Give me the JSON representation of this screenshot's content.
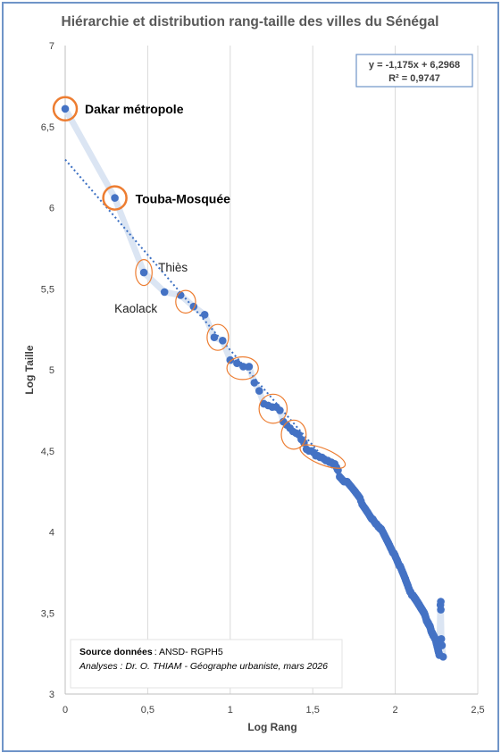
{
  "chart_data": {
    "type": "scatter",
    "title": "Hiérarchie et distribution rang-taille des villes du Sénégal",
    "xlabel": "Log Rang",
    "ylabel": "Log Taille",
    "xlim": [
      0,
      2.5
    ],
    "ylim": [
      3,
      7
    ],
    "x_ticks": [
      "0",
      "0,5",
      "1",
      "1,5",
      "2",
      "2,5"
    ],
    "y_ticks": [
      "3",
      "3,5",
      "4",
      "4,5",
      "5",
      "5,5",
      "6",
      "6,5",
      "7"
    ],
    "grid": "vertical",
    "equation": "y = -1,175x + 6,2968",
    "r2": "R² = 0,9747",
    "trendline": {
      "slope": -1.175,
      "intercept": 6.2968
    },
    "series": [
      {
        "points": [
          [
            0.0,
            6.61
          ],
          [
            0.301,
            6.06
          ],
          [
            0.477,
            5.6
          ],
          [
            0.602,
            5.48
          ],
          [
            0.699,
            5.46
          ],
          [
            0.778,
            5.39
          ],
          [
            0.845,
            5.34
          ],
          [
            0.903,
            5.2
          ],
          [
            0.954,
            5.18
          ],
          [
            1.0,
            5.06
          ],
          [
            1.041,
            5.04
          ],
          [
            1.079,
            5.02
          ],
          [
            1.114,
            5.02
          ],
          [
            1.146,
            4.92
          ],
          [
            1.176,
            4.87
          ],
          [
            1.204,
            4.79
          ],
          [
            1.23,
            4.78
          ],
          [
            1.255,
            4.77
          ],
          [
            1.279,
            4.77
          ],
          [
            1.301,
            4.75
          ],
          [
            1.322,
            4.68
          ],
          [
            1.342,
            4.66
          ],
          [
            1.362,
            4.64
          ],
          [
            1.38,
            4.62
          ],
          [
            1.398,
            4.61
          ],
          [
            1.415,
            4.6
          ],
          [
            1.431,
            4.57
          ],
          [
            1.447,
            4.55
          ],
          [
            1.462,
            4.51
          ],
          [
            1.477,
            4.5
          ],
          [
            1.491,
            4.5
          ],
          [
            1.505,
            4.49
          ],
          [
            1.519,
            4.47
          ],
          [
            1.531,
            4.47
          ],
          [
            1.544,
            4.46
          ],
          [
            1.556,
            4.46
          ],
          [
            1.568,
            4.45
          ],
          [
            1.58,
            4.44
          ],
          [
            1.591,
            4.44
          ],
          [
            1.602,
            4.43
          ],
          [
            1.613,
            4.43
          ],
          [
            1.623,
            4.42
          ],
          [
            1.633,
            4.42
          ],
          [
            1.643,
            4.4
          ],
          [
            1.653,
            4.38
          ],
          [
            1.663,
            4.34
          ],
          [
            1.672,
            4.33
          ],
          [
            1.681,
            4.32
          ],
          [
            1.69,
            4.31
          ],
          [
            1.699,
            4.31
          ],
          [
            1.708,
            4.31
          ],
          [
            1.716,
            4.3
          ],
          [
            1.724,
            4.29
          ],
          [
            1.732,
            4.28
          ],
          [
            1.74,
            4.27
          ],
          [
            1.748,
            4.26
          ],
          [
            1.756,
            4.25
          ],
          [
            1.763,
            4.24
          ],
          [
            1.771,
            4.23
          ],
          [
            1.778,
            4.22
          ],
          [
            1.785,
            4.21
          ],
          [
            1.792,
            4.19
          ],
          [
            1.799,
            4.17
          ],
          [
            1.806,
            4.16
          ],
          [
            1.813,
            4.15
          ],
          [
            1.82,
            4.14
          ],
          [
            1.826,
            4.13
          ],
          [
            1.833,
            4.12
          ],
          [
            1.839,
            4.11
          ],
          [
            1.845,
            4.1
          ],
          [
            1.851,
            4.09
          ],
          [
            1.857,
            4.08
          ],
          [
            1.863,
            4.08
          ],
          [
            1.869,
            4.07
          ],
          [
            1.875,
            4.06
          ],
          [
            1.881,
            4.05
          ],
          [
            1.886,
            4.05
          ],
          [
            1.892,
            4.04
          ],
          [
            1.898,
            4.03
          ],
          [
            1.903,
            4.03
          ],
          [
            1.908,
            4.02
          ],
          [
            1.914,
            4.02
          ],
          [
            1.919,
            4.01
          ],
          [
            1.924,
            4.0
          ],
          [
            1.929,
            3.99
          ],
          [
            1.934,
            3.98
          ],
          [
            1.939,
            3.97
          ],
          [
            1.944,
            3.96
          ],
          [
            1.949,
            3.95
          ],
          [
            1.954,
            3.94
          ],
          [
            1.959,
            3.93
          ],
          [
            1.964,
            3.92
          ],
          [
            1.968,
            3.91
          ],
          [
            1.973,
            3.9
          ],
          [
            1.978,
            3.89
          ],
          [
            1.982,
            3.88
          ],
          [
            1.987,
            3.87
          ],
          [
            1.991,
            3.87
          ],
          [
            1.996,
            3.86
          ],
          [
            2.0,
            3.85
          ],
          [
            2.004,
            3.84
          ],
          [
            2.009,
            3.83
          ],
          [
            2.013,
            3.82
          ],
          [
            2.017,
            3.81
          ],
          [
            2.021,
            3.8
          ],
          [
            2.025,
            3.79
          ],
          [
            2.029,
            3.79
          ],
          [
            2.033,
            3.78
          ],
          [
            2.037,
            3.77
          ],
          [
            2.041,
            3.76
          ],
          [
            2.045,
            3.75
          ],
          [
            2.049,
            3.74
          ],
          [
            2.053,
            3.73
          ],
          [
            2.057,
            3.72
          ],
          [
            2.061,
            3.71
          ],
          [
            2.064,
            3.7
          ],
          [
            2.068,
            3.69
          ],
          [
            2.072,
            3.68
          ],
          [
            2.076,
            3.67
          ],
          [
            2.079,
            3.66
          ],
          [
            2.083,
            3.65
          ],
          [
            2.086,
            3.64
          ],
          [
            2.09,
            3.63
          ],
          [
            2.093,
            3.63
          ],
          [
            2.097,
            3.62
          ],
          [
            2.1,
            3.61
          ],
          [
            2.104,
            3.61
          ],
          [
            2.107,
            3.61
          ],
          [
            2.111,
            3.6
          ],
          [
            2.114,
            3.6
          ],
          [
            2.117,
            3.59
          ],
          [
            2.121,
            3.59
          ],
          [
            2.124,
            3.58
          ],
          [
            2.127,
            3.58
          ],
          [
            2.13,
            3.57
          ],
          [
            2.134,
            3.57
          ],
          [
            2.137,
            3.56
          ],
          [
            2.14,
            3.56
          ],
          [
            2.143,
            3.55
          ],
          [
            2.146,
            3.55
          ],
          [
            2.149,
            3.54
          ],
          [
            2.152,
            3.54
          ],
          [
            2.155,
            3.53
          ],
          [
            2.158,
            3.53
          ],
          [
            2.161,
            3.52
          ],
          [
            2.164,
            3.52
          ],
          [
            2.167,
            3.51
          ],
          [
            2.17,
            3.51
          ],
          [
            2.173,
            3.5
          ],
          [
            2.176,
            3.5
          ],
          [
            2.179,
            3.49
          ],
          [
            2.182,
            3.48
          ],
          [
            2.185,
            3.47
          ],
          [
            2.188,
            3.46
          ],
          [
            2.19,
            3.45
          ],
          [
            2.193,
            3.45
          ],
          [
            2.196,
            3.44
          ],
          [
            2.199,
            3.44
          ],
          [
            2.201,
            3.43
          ],
          [
            2.204,
            3.43
          ],
          [
            2.207,
            3.42
          ],
          [
            2.21,
            3.42
          ],
          [
            2.212,
            3.41
          ],
          [
            2.215,
            3.4
          ],
          [
            2.217,
            3.39
          ],
          [
            2.22,
            3.38
          ],
          [
            2.223,
            3.38
          ],
          [
            2.225,
            3.37
          ],
          [
            2.228,
            3.37
          ],
          [
            2.23,
            3.36
          ],
          [
            2.233,
            3.36
          ],
          [
            2.236,
            3.35
          ],
          [
            2.238,
            3.35
          ],
          [
            2.241,
            3.34
          ],
          [
            2.243,
            3.34
          ],
          [
            2.246,
            3.33
          ],
          [
            2.248,
            3.32
          ],
          [
            2.25,
            3.31
          ],
          [
            2.253,
            3.3
          ],
          [
            2.255,
            3.29
          ],
          [
            2.258,
            3.28
          ],
          [
            2.26,
            3.27
          ],
          [
            2.262,
            3.26
          ],
          [
            2.265,
            3.25
          ],
          [
            2.267,
            3.24
          ],
          [
            2.274,
            3.55
          ],
          [
            2.276,
            3.57
          ],
          [
            2.276,
            3.52
          ],
          [
            2.279,
            3.34
          ],
          [
            2.283,
            3.3
          ],
          [
            2.29,
            3.23
          ]
        ]
      }
    ],
    "labels": [
      {
        "text": "Dakar métropole",
        "x": 0.0,
        "y": 6.61,
        "style": "bold"
      },
      {
        "text": "Touba-Mosquée",
        "x": 0.301,
        "y": 6.06,
        "style": "bold"
      },
      {
        "text": "Thiès",
        "x": 0.477,
        "y": 5.6,
        "style": "normal"
      },
      {
        "text": "Kaolack",
        "x": 0.602,
        "y": 5.48,
        "style": "normal"
      }
    ],
    "highlight_circles": [
      {
        "x": 0.0,
        "y": 6.61,
        "w": 0.07,
        "h": 0.1
      },
      {
        "x": 0.301,
        "y": 6.06,
        "w": 0.07,
        "h": 0.1
      },
      {
        "x": 0.477,
        "y": 5.6,
        "w": 0.05,
        "h": 0.08
      },
      {
        "x": 0.73,
        "y": 5.42,
        "w": 0.06,
        "h": 0.07
      },
      {
        "x": 0.925,
        "y": 5.2,
        "w": 0.065,
        "h": 0.08
      },
      {
        "x": 1.075,
        "y": 5.01,
        "w": 0.095,
        "h": 0.07
      },
      {
        "x": 1.26,
        "y": 4.76,
        "w": 0.085,
        "h": 0.09
      },
      {
        "x": 1.385,
        "y": 4.6,
        "w": 0.075,
        "h": 0.09
      }
    ],
    "source_line_label": "Source données",
    "source_line_value": ": ANSD- RGPH5",
    "analysis_line": "Analyses : Dr. O. THIAM - Géographe urbaniste, mars 2026",
    "colors": {
      "points": "#4472c4",
      "trend": "#3b6fc2",
      "smooth_line": "#dbe5f3",
      "circles": "#ed7d31",
      "gridlines": "#d9d9d9",
      "frame": "#6f94c8"
    }
  }
}
